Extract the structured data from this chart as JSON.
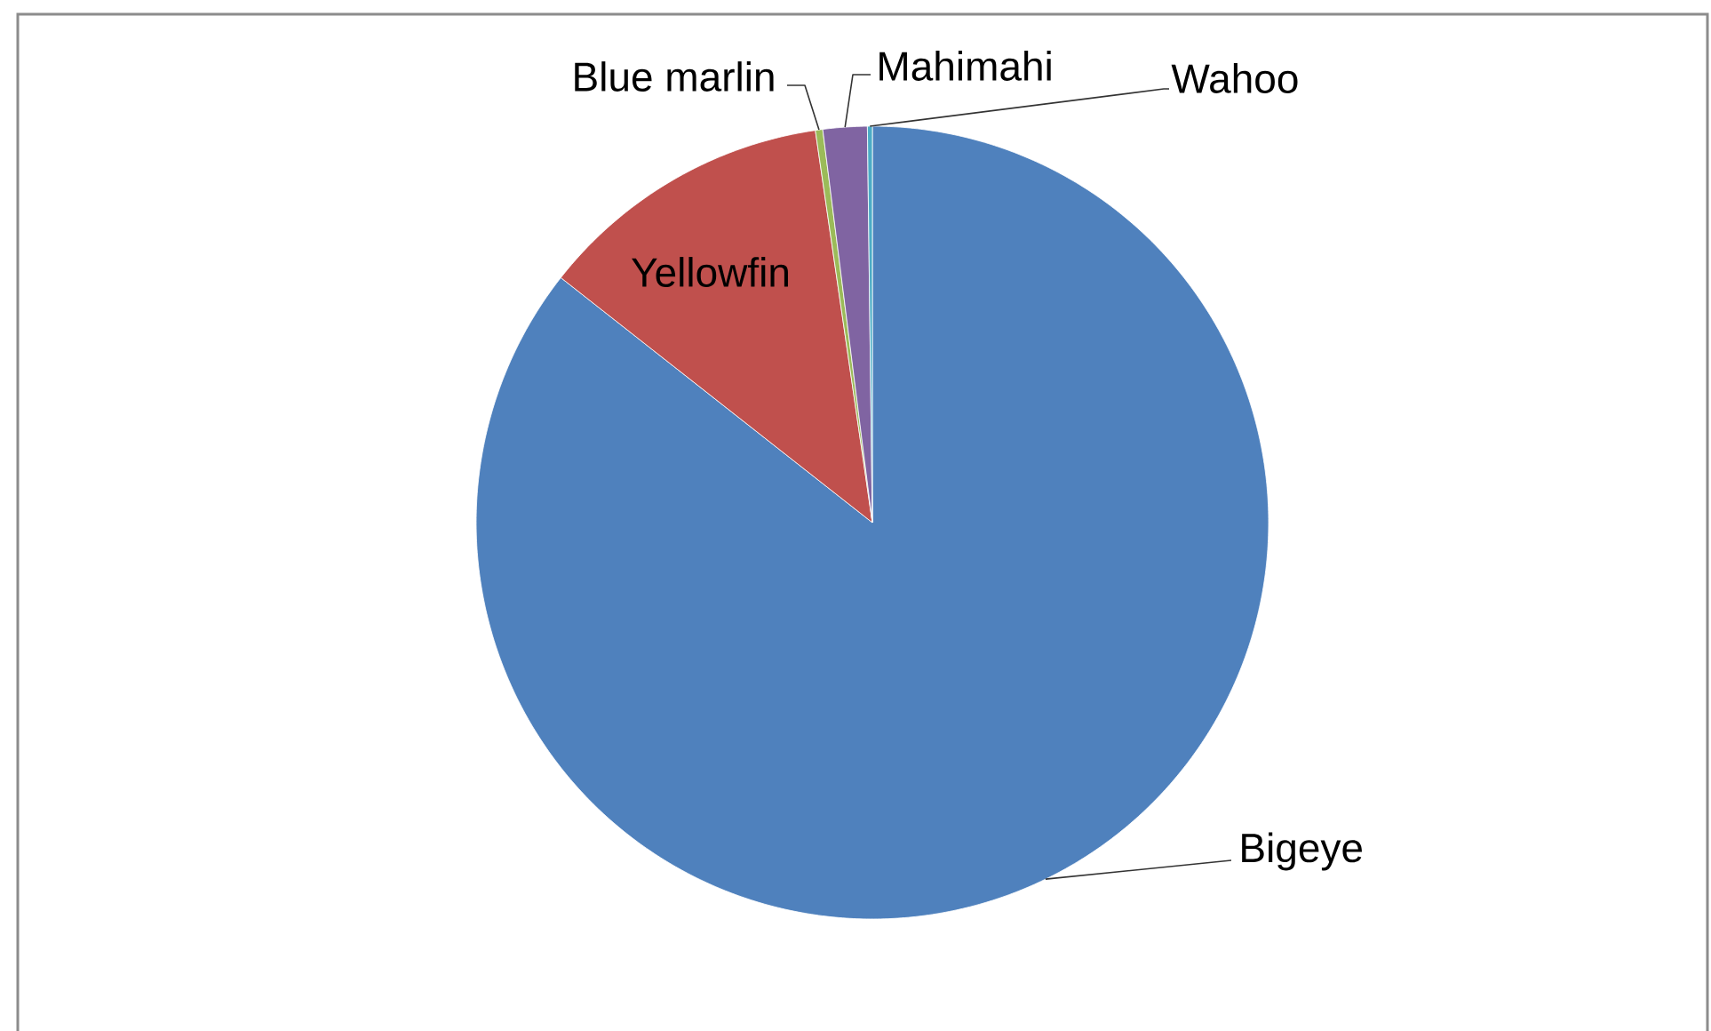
{
  "chart_data": {
    "type": "pie",
    "categories": [
      "Bigeye",
      "Yellowfin",
      "Blue marlin",
      "Mahimahi",
      "Wahoo"
    ],
    "values": [
      85.6,
      12.1,
      0.3,
      1.8,
      0.2
    ],
    "colors": [
      "#4f81bd",
      "#c0504d",
      "#9bbb59",
      "#8064a2",
      "#4bacc6"
    ]
  }
}
